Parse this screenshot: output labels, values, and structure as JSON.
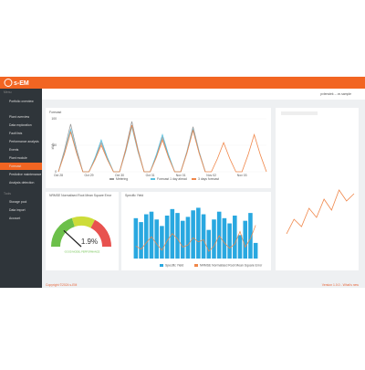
{
  "header": {
    "logo": "s-EM",
    "user": "pvlenstek -- vs sample"
  },
  "sidebar": {
    "menu_label": "Menu",
    "top_item": "Portfolio overview",
    "items": [
      "Plant overview",
      "Data exploration",
      "Fault lists",
      "Performance analysis",
      "Events",
      "Plant module",
      "Forecast",
      "Predictive maintenance",
      "Analysis detection"
    ],
    "active_index": 6,
    "tools_label": "Tools",
    "tools": [
      "Storage pool",
      "Data import",
      "Account"
    ]
  },
  "forecast": {
    "type": "line",
    "title": "Forecast",
    "y_label": "kWh",
    "ylim": [
      0,
      100
    ],
    "yticks": [
      0,
      50,
      100
    ],
    "categories": [
      "Oct 28",
      null,
      null,
      null,
      null,
      "Oct 29",
      null,
      null,
      null,
      null,
      "Oct 30",
      null,
      null,
      null,
      null,
      "Oct 31",
      null,
      null,
      null,
      null,
      "Nov 01",
      null,
      null,
      null,
      null,
      "Nov 02",
      null,
      null,
      null,
      null,
      "Nov 03",
      null,
      null,
      null,
      null
    ],
    "series": [
      {
        "name": "Metering",
        "color": "#9a9a9a",
        "values": [
          0,
          41,
          90,
          41,
          0,
          0,
          25,
          55,
          25,
          0,
          0,
          43,
          95,
          43,
          0,
          0,
          29,
          65,
          29,
          0,
          0,
          38,
          85,
          38,
          0,
          null,
          null,
          null,
          null,
          null,
          null,
          null,
          null,
          null,
          null
        ]
      },
      {
        "name": "Forecast 1 day ahead",
        "color": "#5bc0de",
        "values": [
          0,
          36,
          80,
          36,
          0,
          0,
          27,
          60,
          27,
          0,
          0,
          38,
          85,
          38,
          0,
          0,
          32,
          70,
          32,
          0,
          0,
          36,
          80,
          36,
          0,
          null,
          null,
          null,
          null,
          null,
          null,
          null,
          null,
          null,
          null
        ]
      },
      {
        "name": "3 days forecast",
        "color": "#f0874a",
        "values": [
          0,
          34,
          75,
          34,
          0,
          0,
          23,
          50,
          23,
          0,
          0,
          40,
          88,
          40,
          0,
          0,
          27,
          60,
          27,
          0,
          0,
          35,
          78,
          35,
          0,
          0,
          25,
          55,
          25,
          0,
          0,
          32,
          70,
          32,
          0
        ]
      }
    ]
  },
  "gauge": {
    "type": "gauge",
    "title": "NRMSE Normalised Root Mean Square Error",
    "value": 1.9,
    "value_label": "1.9%",
    "range": [
      0,
      8
    ],
    "caption": "GOOD MODEL PERFORMANCE"
  },
  "yield": {
    "type": "bar",
    "title": "Specific Yield",
    "ylim": [
      0,
      4
    ],
    "y2lim": [
      0,
      5
    ],
    "series": [
      {
        "name": "Specific Yield",
        "color": "#29a8e0",
        "values": [
          3.1,
          2.8,
          3.4,
          3.6,
          3.0,
          2.5,
          3.3,
          3.8,
          3.5,
          2.9,
          3.2,
          3.7,
          3.9,
          3.4,
          2.2,
          3.0,
          3.6,
          3.1,
          2.7,
          3.3,
          1.8,
          2.9,
          3.5,
          1.2
        ]
      },
      {
        "name": "NRMSE Normalised Root Mean Square Error",
        "color": "#f0874a",
        "axis": "y2",
        "values": [
          1.2,
          0.9,
          1.5,
          2.1,
          1.4,
          0.8,
          1.7,
          2.4,
          1.9,
          1.1,
          1.3,
          2.0,
          1.6,
          1.8,
          0.7,
          1.2,
          2.2,
          1.5,
          1.0,
          1.4,
          2.6,
          1.1,
          1.9,
          3.2
        ]
      }
    ]
  },
  "trend": {
    "type": "line",
    "ylim": [
      0,
      4
    ],
    "color": "#f0874a",
    "values": [
      1.2,
      2.0,
      1.6,
      2.6,
      2.1,
      3.1,
      2.5,
      3.6,
      3.0,
      3.4
    ]
  },
  "footer": {
    "copyright": "Copyright ©2024 s-EM",
    "version": "Version 1.0.0 - What's new"
  }
}
